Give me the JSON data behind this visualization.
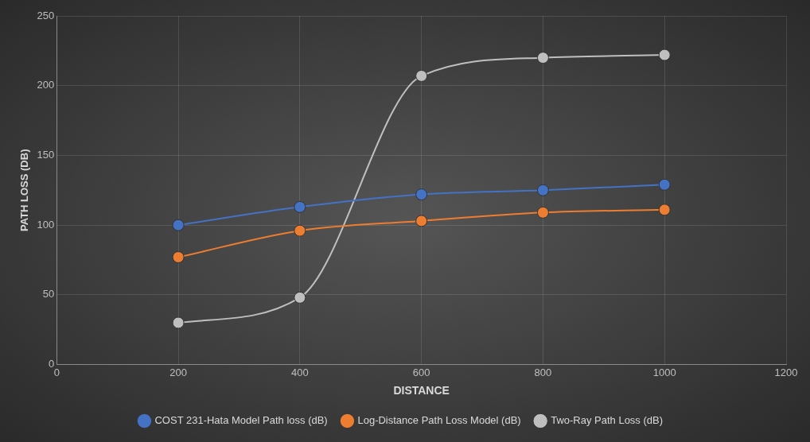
{
  "chart_data": {
    "type": "line",
    "xlabel": "DISTANCE",
    "ylabel": "PATH LOSS (DB)",
    "x": [
      200,
      400,
      600,
      800,
      1000
    ],
    "series": [
      {
        "name": "COST 231-Hata Model Path loss (dB)",
        "color": "#4472c4",
        "values": [
          100,
          113,
          122,
          125,
          129
        ]
      },
      {
        "name": "Log-Distance Path Loss Model (dB)",
        "color": "#ed7d31",
        "values": [
          77,
          96,
          103,
          109,
          111
        ]
      },
      {
        "name": "Two-Ray Path Loss (dB)",
        "color": "#bfbfbf",
        "values": [
          30,
          48,
          207,
          220,
          222
        ]
      }
    ],
    "xlim": [
      0,
      1200
    ],
    "xticks": [
      0,
      200,
      400,
      600,
      800,
      1000,
      1200
    ],
    "ylim": [
      0,
      250
    ],
    "yticks": [
      0,
      50,
      100,
      150,
      200,
      250
    ],
    "grid": true,
    "legend": "bottom",
    "marker": "circle",
    "line_style": "solid"
  }
}
